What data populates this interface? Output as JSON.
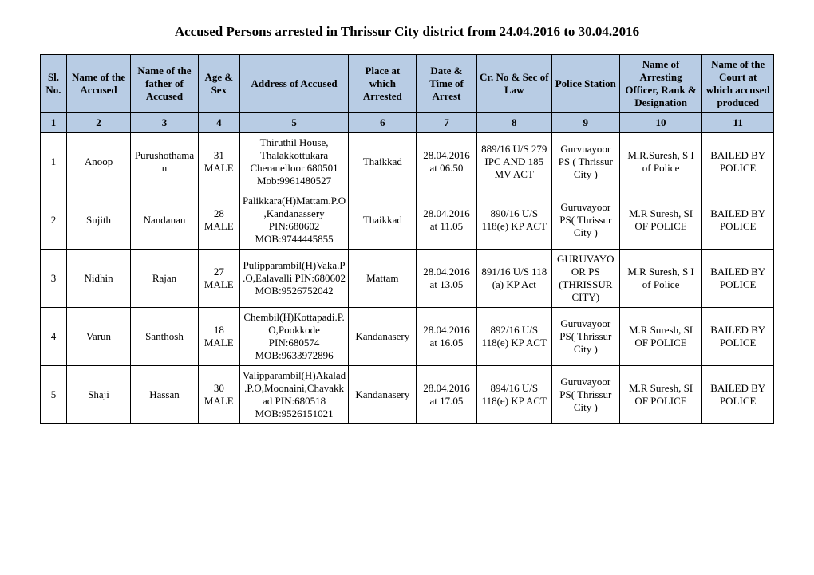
{
  "title": "Accused Persons arrested in   Thrissur City   district from   24.04.2016 to 30.04.2016",
  "headers": {
    "c1": "Sl. No.",
    "c2": "Name of the Accused",
    "c3": "Name of the father of Accused",
    "c4": "Age & Sex",
    "c5": "Address of Accused",
    "c6": "Place at which Arrested",
    "c7": "Date & Time of Arrest",
    "c8": "Cr. No & Sec of Law",
    "c9": "Police Station",
    "c10": "Name of Arresting Officer, Rank & Designation",
    "c11": "Name of the Court at which accused produced"
  },
  "colnums": {
    "c1": "1",
    "c2": "2",
    "c3": "3",
    "c4": "4",
    "c5": "5",
    "c6": "6",
    "c7": "7",
    "c8": "8",
    "c9": "9",
    "c10": "10",
    "c11": "11"
  },
  "rows": [
    {
      "c1": "1",
      "c2": "Anoop",
      "c3": "Purushothaman",
      "c4": "31 MALE",
      "c5": "Thiruthil House, Thalakkottukara Cheranelloor 680501 Mob:9961480527",
      "c6": "Thaikkad",
      "c7": "28.04.2016 at 06.50",
      "c8": "889/16 U/S 279 IPC AND 185 MV ACT",
      "c9": "Gurvuayoor PS ( Thrissur City )",
      "c10": "M.R.Suresh, S I of Police",
      "c11": "BAILED BY POLICE"
    },
    {
      "c1": "2",
      "c2": "Sujith",
      "c3": "Nandanan",
      "c4": "28 MALE",
      "c5": "Palikkara(H)Mattam.P.O,Kandanassery PIN:680602 MOB:9744445855",
      "c6": "Thaikkad",
      "c7": "28.04.2016 at 11.05",
      "c8": "890/16 U/S 118(e) KP ACT",
      "c9": "Guruvayoor PS( Thrissur City )",
      "c10": "M.R Suresh, SI OF POLICE",
      "c11": "BAILED BY POLICE"
    },
    {
      "c1": "3",
      "c2": "Nidhin",
      "c3": "Rajan",
      "c4": "27 MALE",
      "c5": "Pulipparambil(H)Vaka.P.O,Ealavalli PIN:680602 MOB:9526752042",
      "c6": "Mattam",
      "c7": "28.04.2016 at 13.05",
      "c8": "891/16 U/S 118 (a) KP Act",
      "c9": "GURUVAYOOR PS (THRISSUR CITY)",
      "c10": "M.R Suresh, S I of Police",
      "c11": "BAILED BY POLICE"
    },
    {
      "c1": "4",
      "c2": "Varun",
      "c3": "Santhosh",
      "c4": "18 MALE",
      "c5": "Chembil(H)Kottapadi.P.O,Pookkode PIN:680574 MOB:9633972896",
      "c6": "Kandanasery",
      "c7": "28.04.2016 at 16.05",
      "c8": "892/16 U/S 118(e) KP ACT",
      "c9": "Guruvayoor PS( Thrissur City )",
      "c10": "M.R Suresh, SI OF POLICE",
      "c11": "BAILED BY POLICE"
    },
    {
      "c1": "5",
      "c2": "Shaji",
      "c3": "Hassan",
      "c4": "30 MALE",
      "c5": "Valipparambil(H)Akalad.P.O,Moonaini,Chavakkad PIN:680518 MOB:9526151021",
      "c6": "Kandanasery",
      "c7": "28.04.2016 at 17.05",
      "c8": "894/16 U/S 118(e) KP ACT",
      "c9": "Guruvayoor PS( Thrissur City )",
      "c10": "M.R Suresh, SI OF POLICE",
      "c11": "BAILED BY POLICE"
    }
  ]
}
